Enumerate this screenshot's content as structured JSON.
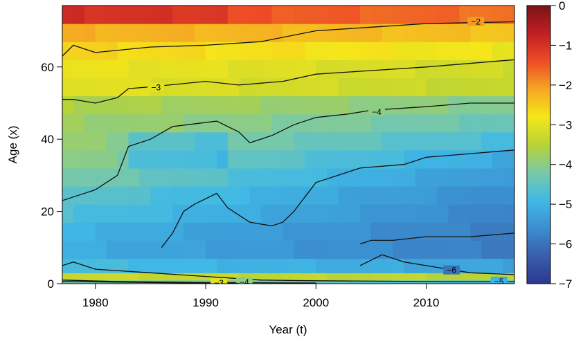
{
  "chart_data": {
    "type": "heatmap",
    "title": "",
    "xlabel": "Year (t)",
    "ylabel": "Age (x)",
    "xlim": [
      1977,
      2018
    ],
    "ylim": [
      0,
      77
    ],
    "x_ticks": [
      "1980",
      "1990",
      "2000",
      "2010"
    ],
    "y_ticks": [
      "0",
      "20",
      "40",
      "60"
    ],
    "colorbar": {
      "min": -7,
      "max": 0,
      "ticks": [
        "0",
        "−1",
        "−2",
        "−3",
        "−4",
        "−5",
        "−6",
        "−7"
      ],
      "palette": [
        "#2b3990",
        "#3a5eaa",
        "#3b8fd0",
        "#40b9e6",
        "#7ac9a6",
        "#b8d334",
        "#f5e61a",
        "#f5a623",
        "#ee4b26",
        "#c01f24",
        "#7a1316"
      ]
    },
    "age_bands": [
      {
        "age_lo": 0,
        "age_hi": 1,
        "base": -4.2,
        "trend": -0.6
      },
      {
        "age_lo": 1,
        "age_hi": 3,
        "base": -3.3,
        "trend": -0.2
      },
      {
        "age_lo": 3,
        "age_hi": 7,
        "base": -4.8,
        "trend": -0.5
      },
      {
        "age_lo": 7,
        "age_hi": 12,
        "base": -5.1,
        "trend": -0.8
      },
      {
        "age_lo": 12,
        "age_hi": 17,
        "base": -5.0,
        "trend": -0.9
      },
      {
        "age_lo": 17,
        "age_hi": 22,
        "base": -4.7,
        "trend": -1.1
      },
      {
        "age_lo": 22,
        "age_hi": 27,
        "base": -4.5,
        "trend": -1.2
      },
      {
        "age_lo": 27,
        "age_hi": 32,
        "base": -4.2,
        "trend": -1.3
      },
      {
        "age_lo": 32,
        "age_hi": 37,
        "base": -4.0,
        "trend": -1.2
      },
      {
        "age_lo": 37,
        "age_hi": 42,
        "base": -3.9,
        "trend": -0.9
      },
      {
        "age_lo": 42,
        "age_hi": 47,
        "base": -3.8,
        "trend": -0.6
      },
      {
        "age_lo": 47,
        "age_hi": 52,
        "base": -3.6,
        "trend": -0.5
      },
      {
        "age_lo": 52,
        "age_hi": 57,
        "base": -3.0,
        "trend": -0.4
      },
      {
        "age_lo": 57,
        "age_hi": 62,
        "base": -2.9,
        "trend": -0.35
      },
      {
        "age_lo": 62,
        "age_hi": 67,
        "base": -2.6,
        "trend": -0.3
      },
      {
        "age_lo": 67,
        "age_hi": 72,
        "base": -2.2,
        "trend": -0.2
      },
      {
        "age_lo": 72,
        "age_hi": 77,
        "base": -1.3,
        "trend": -0.4
      }
    ],
    "contours": [
      {
        "level": "-2",
        "points": [
          [
            1977,
            63
          ],
          [
            1978,
            66
          ],
          [
            1980,
            64
          ],
          [
            1985,
            65.5
          ],
          [
            1990,
            66
          ],
          [
            1995,
            67
          ],
          [
            2000,
            70
          ],
          [
            2005,
            71
          ],
          [
            2010,
            72
          ],
          [
            2018,
            72.5
          ]
        ],
        "label_at": [
          2014.5,
          72.5
        ]
      },
      {
        "level": "-3",
        "points": [
          [
            1977,
            51
          ],
          [
            1978,
            51
          ],
          [
            1980,
            50
          ],
          [
            1982,
            51.5
          ],
          [
            1983,
            54
          ],
          [
            1985,
            54.5
          ],
          [
            1990,
            56
          ],
          [
            1993,
            55
          ],
          [
            1997,
            56
          ],
          [
            2000,
            58
          ],
          [
            2005,
            59
          ],
          [
            2010,
            60
          ],
          [
            2018,
            62
          ]
        ],
        "label_at": [
          1985.5,
          54.3
        ]
      },
      {
        "level": "-4",
        "points": [
          [
            1977,
            23
          ],
          [
            1980,
            26
          ],
          [
            1982,
            30
          ],
          [
            1983,
            38
          ],
          [
            1985,
            40
          ],
          [
            1987,
            43.5
          ],
          [
            1991,
            45
          ],
          [
            1993,
            42
          ],
          [
            1994,
            39
          ],
          [
            1996,
            41
          ],
          [
            1998,
            44
          ],
          [
            2000,
            46
          ],
          [
            2003,
            47
          ],
          [
            2005,
            48
          ],
          [
            2010,
            49
          ],
          [
            2014,
            50
          ],
          [
            2018,
            50
          ]
        ],
        "label_at": [
          2005.5,
          47.5
        ]
      },
      {
        "level": "-5",
        "points": [
          [
            1986,
            10
          ],
          [
            1987,
            14
          ],
          [
            1988,
            20
          ],
          [
            1989,
            22
          ],
          [
            1991,
            25
          ],
          [
            1992,
            21
          ],
          [
            1994,
            17
          ],
          [
            1996,
            16
          ],
          [
            1997,
            17
          ],
          [
            1998,
            20
          ],
          [
            1999,
            24
          ],
          [
            2000,
            28
          ],
          [
            2002,
            30
          ],
          [
            2004,
            32
          ],
          [
            2008,
            33
          ],
          [
            2010,
            35
          ],
          [
            2014,
            36
          ],
          [
            2018,
            37
          ]
        ],
        "label_at": null
      },
      {
        "level": "-6",
        "points": [
          [
            2004,
            11
          ],
          [
            2005,
            12
          ],
          [
            2007,
            12
          ],
          [
            2010,
            13
          ],
          [
            2014,
            13
          ],
          [
            2018,
            14
          ]
        ],
        "label_at": null
      },
      {
        "level": "-6",
        "points": [
          [
            2004,
            5
          ],
          [
            2006,
            8
          ],
          [
            2008,
            6
          ],
          [
            2012,
            4
          ],
          [
            2014,
            3
          ],
          [
            2018,
            2.5
          ]
        ],
        "label_at": [
          2012.3,
          3.7
        ]
      },
      {
        "level": "-5",
        "points": [
          [
            1977,
            5
          ],
          [
            1978,
            6
          ],
          [
            1980,
            4
          ],
          [
            1985,
            3
          ],
          [
            1990,
            2
          ],
          [
            1995,
            1
          ],
          [
            2000,
            0.8
          ],
          [
            2010,
            0.6
          ],
          [
            2018,
            0.5
          ]
        ],
        "label_at": [
          2016.6,
          0.6
        ]
      },
      {
        "level": "-4",
        "points": [
          [
            1977,
            1
          ],
          [
            1982,
            0.6
          ],
          [
            1990,
            0.3
          ],
          [
            2000,
            0.2
          ]
        ],
        "label_at": [
          1993.5,
          0.4
        ]
      },
      {
        "level": "-3",
        "points": [
          [
            1977,
            0.6
          ],
          [
            1985,
            0.3
          ],
          [
            1993,
            0.1
          ]
        ],
        "label_at": [
          1991.2,
          0.15
        ]
      }
    ]
  }
}
